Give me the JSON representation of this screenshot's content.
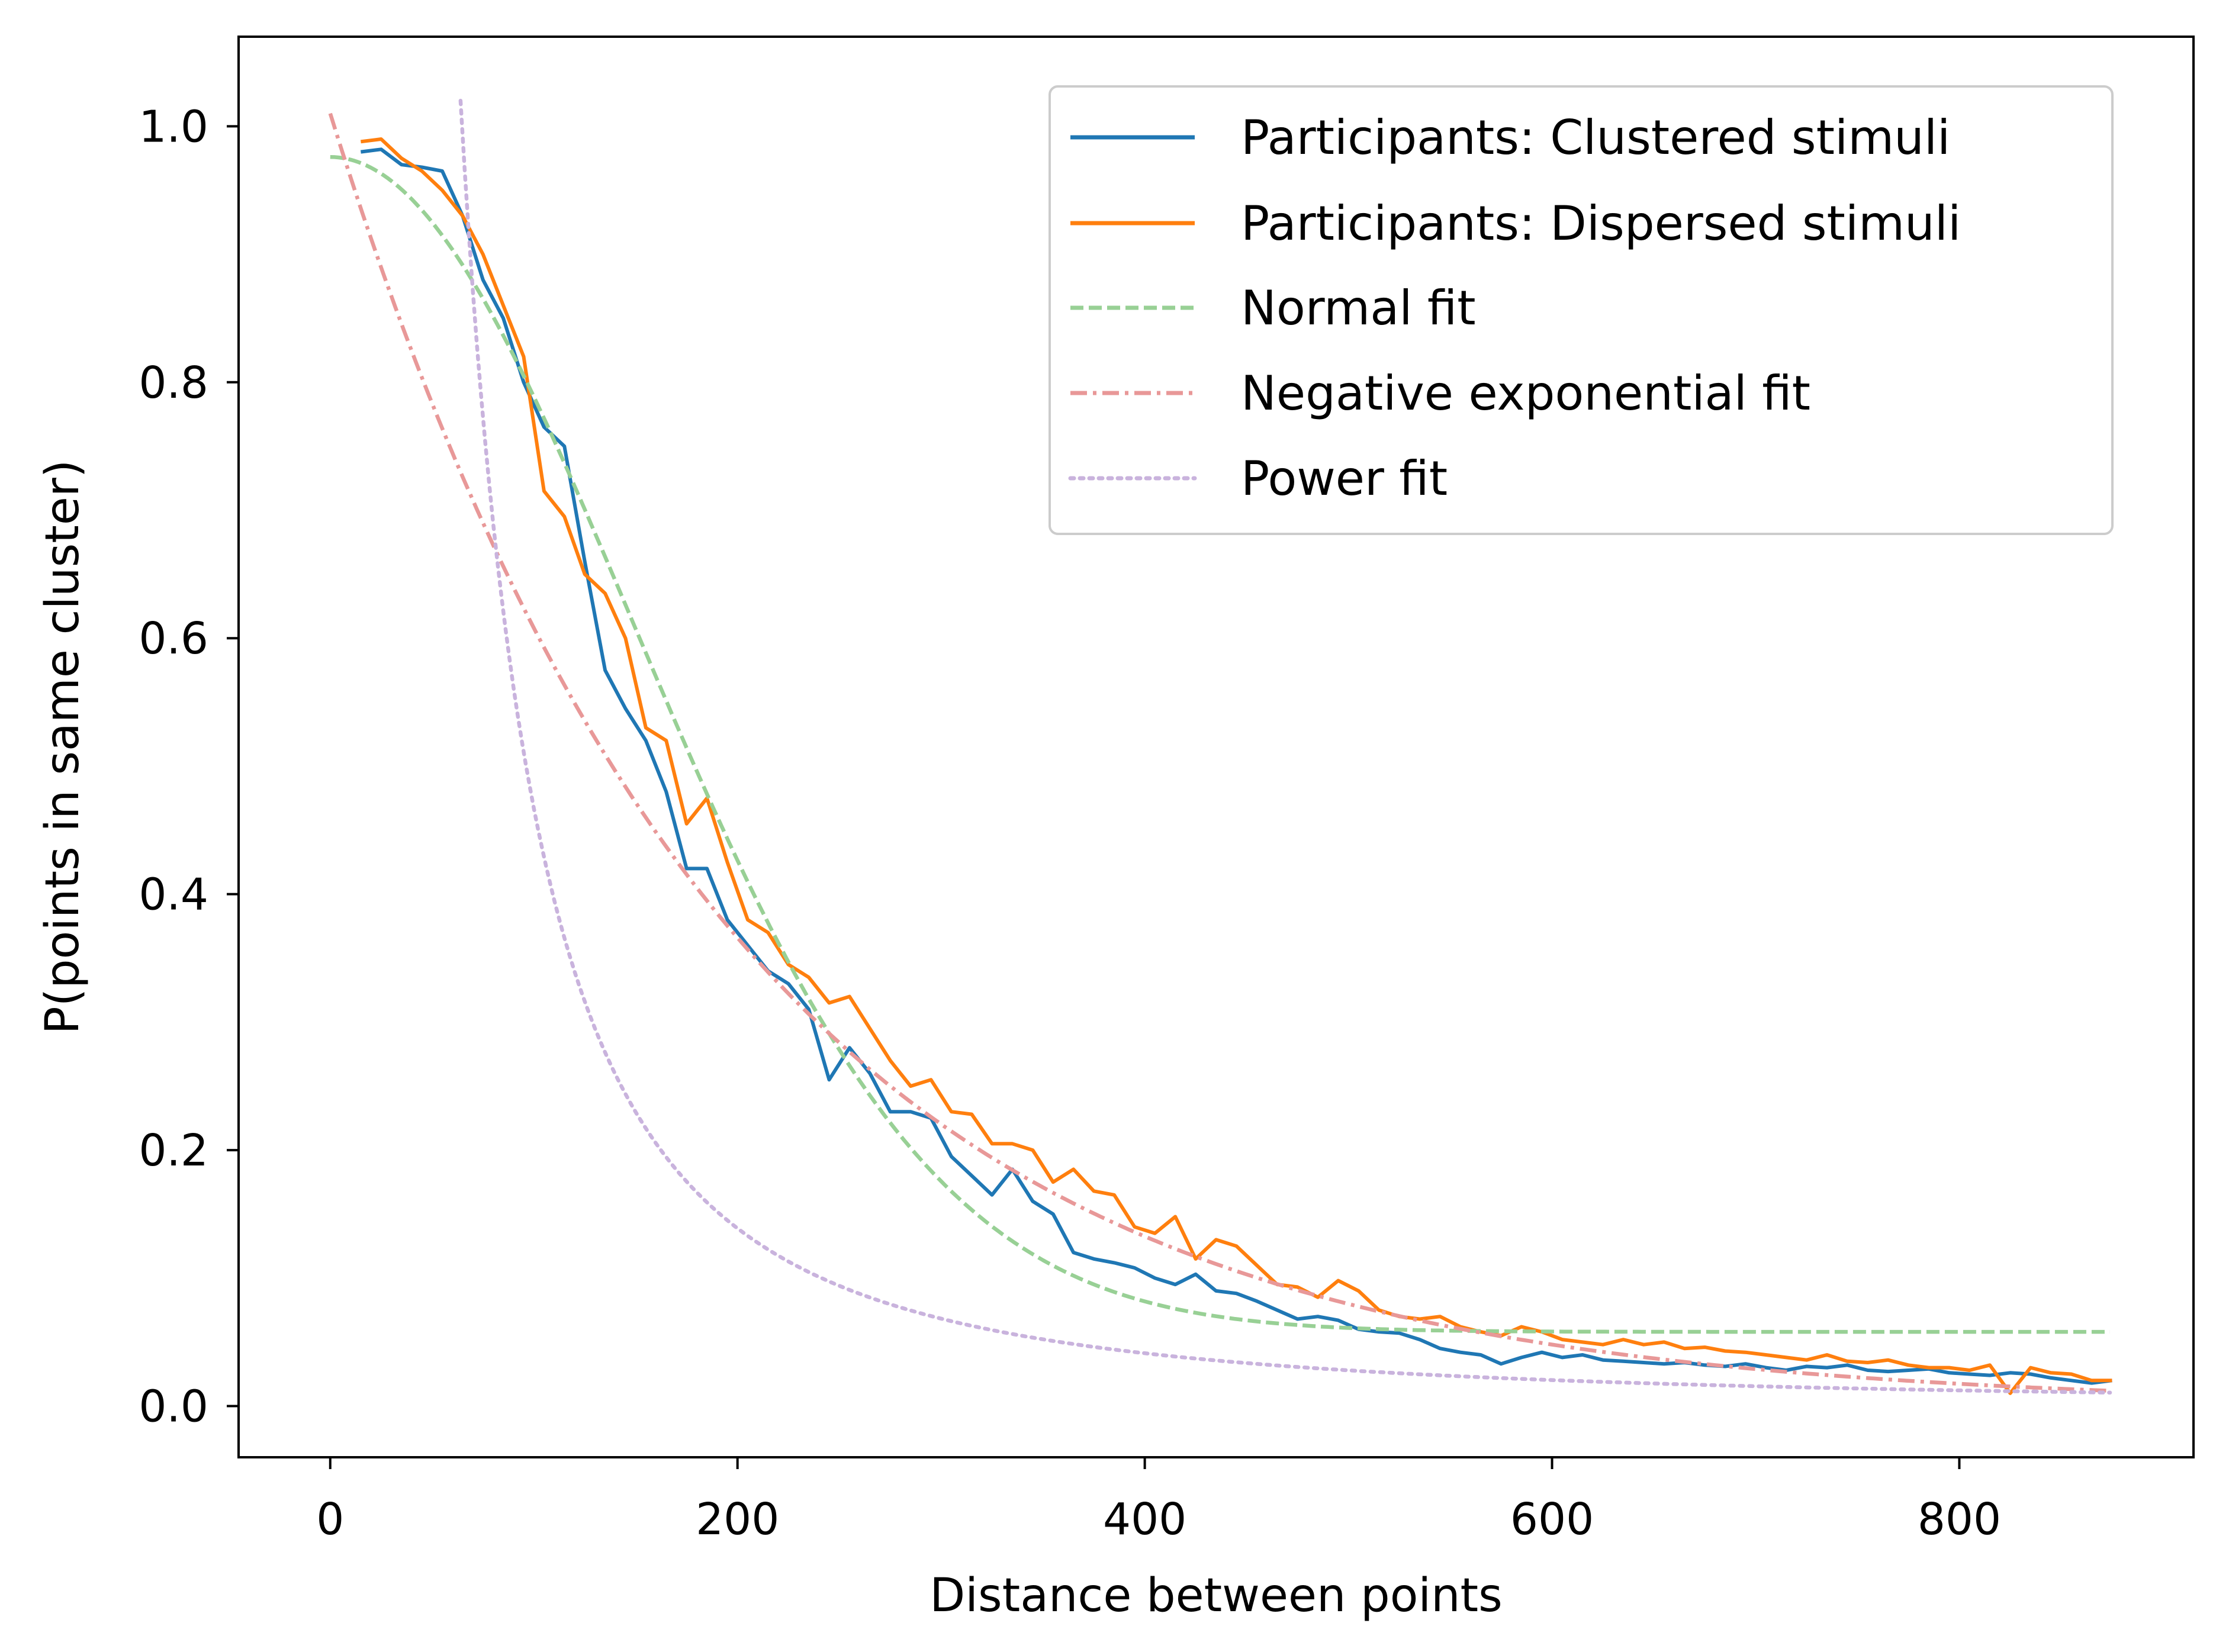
{
  "chart_data": {
    "type": "line",
    "title": "",
    "xlabel": "Distance between points",
    "ylabel": "P(points in same cluster)",
    "xlim": [
      -45,
      915
    ],
    "ylim": [
      -0.04,
      1.07
    ],
    "xticks": [
      0,
      200,
      400,
      600,
      800
    ],
    "xtick_labels": [
      "0",
      "200",
      "400",
      "600",
      "800"
    ],
    "yticks": [
      0.0,
      0.2,
      0.4,
      0.6,
      0.8,
      1.0
    ],
    "ytick_labels": [
      "0.0",
      "0.2",
      "0.4",
      "0.6",
      "0.8",
      "1.0"
    ],
    "grid": false,
    "legend_position": "top-right",
    "series": [
      {
        "name": "Participants: Clustered stimuli",
        "color": "#1f77b4",
        "style": "solid",
        "x": [
          15,
          25,
          35,
          45,
          55,
          65,
          75,
          85,
          95,
          105,
          115,
          125,
          135,
          145,
          155,
          165,
          175,
          185,
          195,
          205,
          215,
          225,
          235,
          245,
          255,
          265,
          275,
          285,
          295,
          305,
          315,
          325,
          335,
          345,
          355,
          365,
          375,
          385,
          395,
          405,
          415,
          425,
          435,
          445,
          455,
          465,
          475,
          485,
          495,
          505,
          515,
          525,
          535,
          545,
          555,
          565,
          575,
          585,
          595,
          605,
          615,
          625,
          635,
          645,
          655,
          665,
          675,
          685,
          695,
          705,
          715,
          725,
          735,
          745,
          755,
          765,
          775,
          785,
          795,
          805,
          815,
          825,
          835,
          845,
          855,
          865,
          875
        ],
        "y": [
          0.98,
          0.982,
          0.97,
          0.968,
          0.965,
          0.93,
          0.88,
          0.85,
          0.8,
          0.765,
          0.75,
          0.66,
          0.575,
          0.545,
          0.52,
          0.48,
          0.42,
          0.42,
          0.38,
          0.36,
          0.34,
          0.33,
          0.31,
          0.255,
          0.28,
          0.26,
          0.23,
          0.23,
          0.225,
          0.195,
          0.18,
          0.165,
          0.185,
          0.16,
          0.15,
          0.12,
          0.115,
          0.112,
          0.108,
          0.1,
          0.095,
          0.103,
          0.09,
          0.088,
          0.082,
          0.075,
          0.068,
          0.07,
          0.067,
          0.06,
          0.058,
          0.057,
          0.052,
          0.045,
          0.042,
          0.04,
          0.033,
          0.038,
          0.042,
          0.038,
          0.04,
          0.036,
          0.035,
          0.034,
          0.033,
          0.034,
          0.032,
          0.031,
          0.033,
          0.03,
          0.028,
          0.031,
          0.03,
          0.032,
          0.028,
          0.027,
          0.028,
          0.029,
          0.026,
          0.025,
          0.024,
          0.026,
          0.025,
          0.022,
          0.02,
          0.018,
          0.02
        ]
      },
      {
        "name": "Participants: Dispersed stimuli",
        "color": "#ff7f0e",
        "style": "solid",
        "x": [
          15,
          25,
          35,
          45,
          55,
          65,
          75,
          85,
          95,
          105,
          115,
          125,
          135,
          145,
          155,
          165,
          175,
          185,
          195,
          205,
          215,
          225,
          235,
          245,
          255,
          265,
          275,
          285,
          295,
          305,
          315,
          325,
          335,
          345,
          355,
          365,
          375,
          385,
          395,
          405,
          415,
          425,
          435,
          445,
          455,
          465,
          475,
          485,
          495,
          505,
          515,
          525,
          535,
          545,
          555,
          565,
          575,
          585,
          595,
          605,
          615,
          625,
          635,
          645,
          655,
          665,
          675,
          685,
          695,
          705,
          715,
          725,
          735,
          745,
          755,
          765,
          775,
          785,
          795,
          805,
          815,
          825,
          835,
          845,
          855,
          865,
          875
        ],
        "y": [
          0.988,
          0.99,
          0.975,
          0.965,
          0.95,
          0.93,
          0.9,
          0.86,
          0.82,
          0.715,
          0.695,
          0.65,
          0.635,
          0.6,
          0.53,
          0.52,
          0.455,
          0.475,
          0.425,
          0.38,
          0.37,
          0.345,
          0.335,
          0.315,
          0.32,
          0.295,
          0.27,
          0.25,
          0.255,
          0.23,
          0.228,
          0.205,
          0.205,
          0.2,
          0.175,
          0.185,
          0.168,
          0.165,
          0.14,
          0.135,
          0.148,
          0.115,
          0.13,
          0.125,
          0.11,
          0.095,
          0.093,
          0.085,
          0.098,
          0.09,
          0.075,
          0.07,
          0.068,
          0.07,
          0.062,
          0.058,
          0.055,
          0.062,
          0.058,
          0.052,
          0.05,
          0.048,
          0.052,
          0.048,
          0.05,
          0.045,
          0.046,
          0.043,
          0.042,
          0.04,
          0.038,
          0.036,
          0.04,
          0.035,
          0.034,
          0.036,
          0.032,
          0.03,
          0.03,
          0.028,
          0.032,
          0.01,
          0.03,
          0.026,
          0.025,
          0.02,
          0.02
        ]
      },
      {
        "name": "Normal fit",
        "color": "#98d095",
        "style": "dashed",
        "function": "normal",
        "params": {
          "a": 0.918,
          "sigma": 148,
          "c": 0.058
        },
        "x_range": [
          0,
          875
        ]
      },
      {
        "name": "Negative exponential fit",
        "color": "#e89898",
        "style": "dashdot",
        "function": "exponential",
        "params": {
          "a": 1.01,
          "tau": 197
        },
        "x_range": [
          0,
          875
        ]
      },
      {
        "name": "Power fit",
        "color": "#c9b3dd",
        "style": "dotted",
        "function": "power",
        "params": {
          "a": 1.02,
          "x0": 64,
          "b": 1.75
        },
        "x_range": [
          64,
          875
        ]
      }
    ]
  }
}
